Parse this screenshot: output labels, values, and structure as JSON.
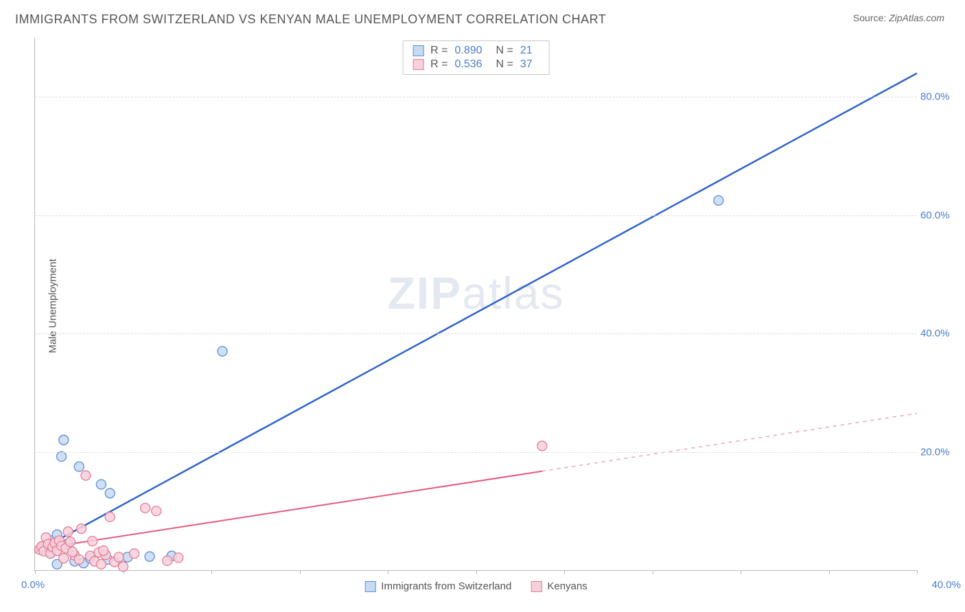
{
  "title": "IMMIGRANTS FROM SWITZERLAND VS KENYAN MALE UNEMPLOYMENT CORRELATION CHART",
  "source_label": "Source:",
  "source_value": "ZipAtlas.com",
  "ylabel": "Male Unemployment",
  "watermark_bold": "ZIP",
  "watermark_rest": "atlas",
  "chart": {
    "type": "scatter",
    "xlim": [
      0,
      40
    ],
    "ylim": [
      0,
      90
    ],
    "x_origin_label": "0.0%",
    "x_max_label": "40.0%",
    "x_tick_positions_pct": [
      0,
      10,
      20,
      30,
      40,
      50,
      60,
      70,
      80,
      90,
      100
    ],
    "y_gridlines": [
      {
        "value": 20,
        "label": "20.0%"
      },
      {
        "value": 40,
        "label": "40.0%"
      },
      {
        "value": 60,
        "label": "60.0%"
      },
      {
        "value": 80,
        "label": "80.0%"
      }
    ],
    "background_color": "#ffffff",
    "axis_color": "#b8b8b8",
    "grid_color": "#dcdcdc",
    "tick_label_color": "#4a7ccc",
    "series": [
      {
        "name": "Immigrants from Switzerland",
        "short": "swiss",
        "marker_fill": "#c7daf2",
        "marker_stroke": "#5c8cd6",
        "marker_radius": 7,
        "line_color": "#2f63c9",
        "line_width": 2.5,
        "R": "0.890",
        "N": "21",
        "points": [
          [
            0.3,
            3.8
          ],
          [
            0.5,
            4.2
          ],
          [
            0.7,
            3.0
          ],
          [
            0.8,
            5.0
          ],
          [
            1.0,
            6.0
          ],
          [
            1.2,
            19.2
          ],
          [
            1.3,
            22.0
          ],
          [
            1.5,
            4.5
          ],
          [
            1.8,
            1.5
          ],
          [
            2.0,
            17.5
          ],
          [
            2.2,
            1.2
          ],
          [
            2.5,
            2.0
          ],
          [
            3.0,
            14.5
          ],
          [
            3.3,
            1.8
          ],
          [
            3.4,
            13.0
          ],
          [
            4.2,
            2.2
          ],
          [
            5.2,
            2.3
          ],
          [
            6.2,
            2.4
          ],
          [
            8.5,
            37.0
          ],
          [
            31.0,
            62.5
          ],
          [
            1.0,
            1.0
          ]
        ],
        "trend": {
          "x1": 0,
          "y1": 3.0,
          "x2": 40,
          "y2": 84.0,
          "dashed_from_x": null
        }
      },
      {
        "name": "Kenyans",
        "short": "kenyan",
        "marker_fill": "#f6d1da",
        "marker_stroke": "#e77a95",
        "marker_radius": 7,
        "line_color": "#e35a7e",
        "line_width": 2,
        "R": "0.536",
        "N": "37",
        "points": [
          [
            0.2,
            3.5
          ],
          [
            0.3,
            4.0
          ],
          [
            0.4,
            3.2
          ],
          [
            0.5,
            5.5
          ],
          [
            0.6,
            4.4
          ],
          [
            0.7,
            2.8
          ],
          [
            0.8,
            3.9
          ],
          [
            0.9,
            4.6
          ],
          [
            1.0,
            3.3
          ],
          [
            1.1,
            5.0
          ],
          [
            1.2,
            4.1
          ],
          [
            1.3,
            2.0
          ],
          [
            1.4,
            3.7
          ],
          [
            1.5,
            6.5
          ],
          [
            1.6,
            4.8
          ],
          [
            1.8,
            2.5
          ],
          [
            2.0,
            1.8
          ],
          [
            2.1,
            7.0
          ],
          [
            2.3,
            16.0
          ],
          [
            2.5,
            2.4
          ],
          [
            2.7,
            1.5
          ],
          [
            2.9,
            3.0
          ],
          [
            3.0,
            1.0
          ],
          [
            3.2,
            2.6
          ],
          [
            3.4,
            9.0
          ],
          [
            3.6,
            1.4
          ],
          [
            3.8,
            2.2
          ],
          [
            4.0,
            0.6
          ],
          [
            4.5,
            2.8
          ],
          [
            5.0,
            10.5
          ],
          [
            5.5,
            10.0
          ],
          [
            6.0,
            1.6
          ],
          [
            6.5,
            2.1
          ],
          [
            3.1,
            3.3
          ],
          [
            2.6,
            4.9
          ],
          [
            1.7,
            3.1
          ],
          [
            23.0,
            21.0
          ]
        ],
        "trend": {
          "x1": 0,
          "y1": 3.5,
          "x2": 40,
          "y2": 26.5,
          "dashed_from_x": 23
        }
      }
    ],
    "legend_stats_labels": {
      "R": "R =",
      "N": "N ="
    },
    "bottom_legend": [
      {
        "swatch_fill": "#c7daf2",
        "swatch_stroke": "#5c8cd6",
        "label": "Immigrants from Switzerland"
      },
      {
        "swatch_fill": "#f6d1da",
        "swatch_stroke": "#e77a95",
        "label": "Kenyans"
      }
    ]
  }
}
